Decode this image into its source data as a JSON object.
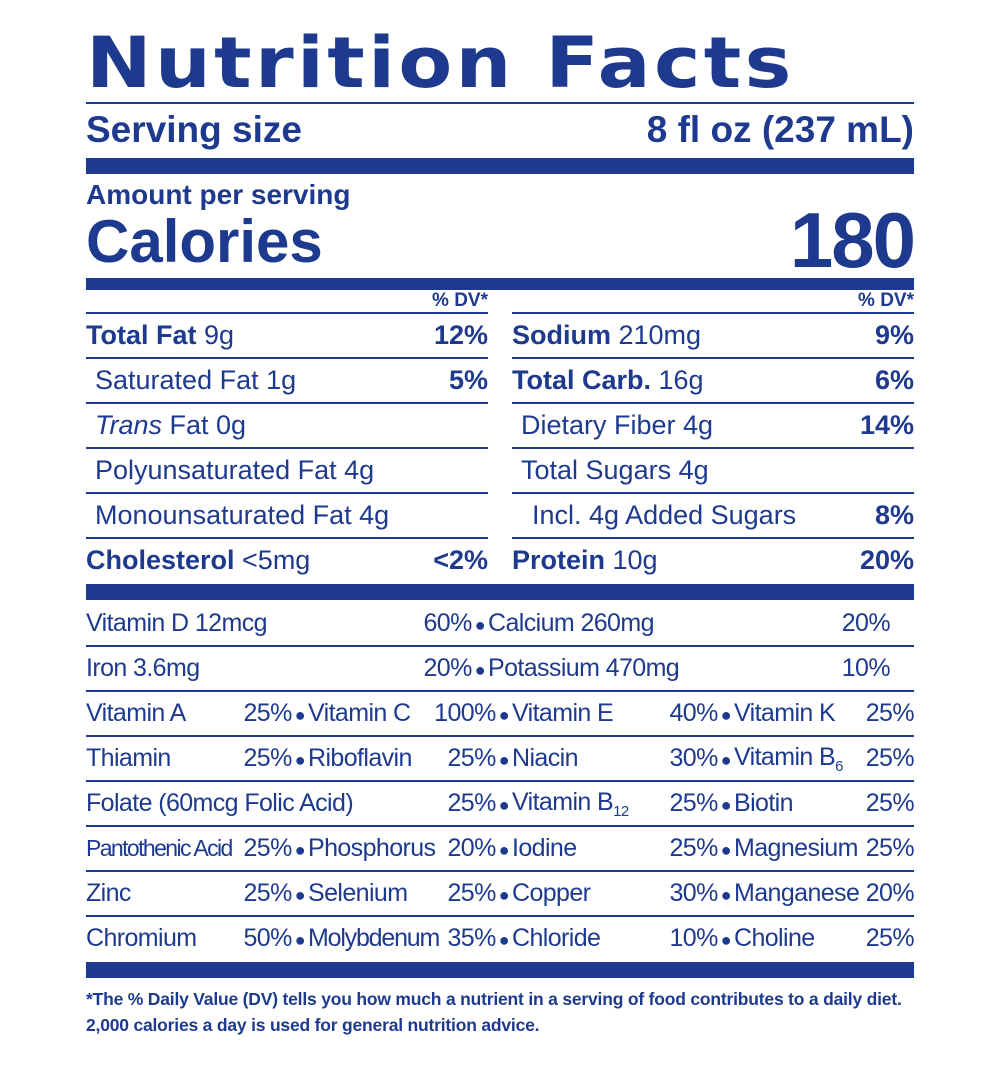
{
  "label": {
    "title": "Nutrition Facts",
    "serving_label": "Serving size",
    "serving_value": "8 fl oz (237 mL)",
    "amount_per_serving": "Amount per serving",
    "calories_label": "Calories",
    "calories_value": "180",
    "dv_header": "% DV*"
  },
  "left": [
    {
      "name_bold": "Total Fat",
      "name": " 9g",
      "pct": "12%"
    },
    {
      "name": "Saturated Fat 1g",
      "pct": "5%"
    },
    {
      "name_italic": "Trans",
      "name": " Fat 0g",
      "pct": ""
    },
    {
      "name": "Polyunsaturated Fat 4g",
      "pct": ""
    },
    {
      "name": "Monounsaturated Fat 4g",
      "pct": ""
    },
    {
      "name_bold": "Cholesterol",
      "name": " <5mg",
      "pct": "<2%"
    }
  ],
  "right": [
    {
      "name_bold": "Sodium",
      "name": " 210mg",
      "pct": "9%"
    },
    {
      "name_bold": "Total Carb.",
      "name": " 16g",
      "pct": "6%"
    },
    {
      "name": "Dietary Fiber 4g",
      "pct": "14%"
    },
    {
      "name": "Total Sugars 4g",
      "pct": ""
    },
    {
      "name": "Incl. 4g Added Sugars",
      "pct": "8%"
    },
    {
      "name_bold": "Protein",
      "name": " 10g",
      "pct": "20%"
    }
  ],
  "vitamins": {
    "row1": [
      {
        "name": "Vitamin D 12mcg",
        "pct": "60%"
      },
      {
        "name": "Calcium 260mg",
        "pct": "20%"
      }
    ],
    "row2": [
      {
        "name": "Iron 3.6mg",
        "pct": "20%"
      },
      {
        "name": "Potassium 470mg",
        "pct": "10%"
      }
    ],
    "row3": [
      {
        "name": "Vitamin A",
        "pct": "25%"
      },
      {
        "name": "Vitamin C",
        "pct": "100%"
      },
      {
        "name": "Vitamin E",
        "pct": "40%"
      },
      {
        "name": "Vitamin K",
        "pct": "25%"
      }
    ],
    "row4": [
      {
        "name": "Thiamin",
        "pct": "25%"
      },
      {
        "name": "Riboflavin",
        "pct": "25%"
      },
      {
        "name": "Niacin",
        "pct": "30%"
      },
      {
        "name": "Vitamin B",
        "sub": "6",
        "pct": "25%"
      }
    ],
    "row5": [
      {
        "name": "Folate (60mcg Folic Acid)",
        "pct": "25%"
      },
      {
        "name": "Vitamin B",
        "sub": "12",
        "pct": "25%"
      },
      {
        "name": "Biotin",
        "pct": "25%"
      }
    ],
    "row6": [
      {
        "name": "Pantothenic Acid",
        "pct": "25%"
      },
      {
        "name": "Phosphorus",
        "pct": "20%"
      },
      {
        "name": "Iodine",
        "pct": "25%"
      },
      {
        "name": "Magnesium",
        "pct": "25%"
      }
    ],
    "row7": [
      {
        "name": "Zinc",
        "pct": "25%"
      },
      {
        "name": "Selenium",
        "pct": "25%"
      },
      {
        "name": "Copper",
        "pct": "30%"
      },
      {
        "name": "Manganese",
        "pct": "20%"
      }
    ],
    "row8": [
      {
        "name": "Chromium",
        "pct": "50%"
      },
      {
        "name": "Molybdenum",
        "pct": "35%"
      },
      {
        "name": "Chloride",
        "pct": "10%"
      },
      {
        "name": "Choline",
        "pct": "25%"
      }
    ]
  },
  "footnote": "*The % Daily Value (DV) tells you how much a nutrient in a serving of food contributes to a daily diet. 2,000 calories a day is used for general nutrition advice.",
  "colors": {
    "ink": "#1e3a8e",
    "background": "#ffffff"
  }
}
